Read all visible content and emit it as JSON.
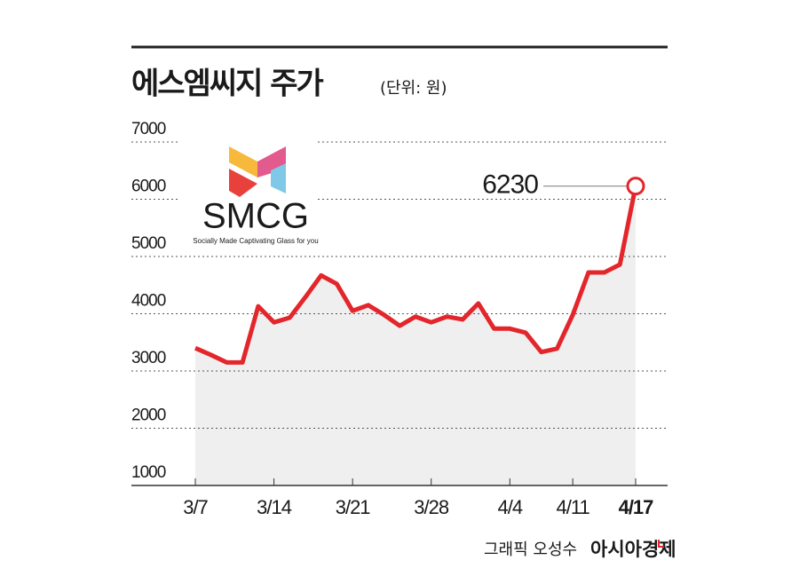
{
  "chart_data": {
    "type": "line",
    "title": "에스엠씨지 주가",
    "subtitle": "(단위: 원)",
    "categories": [
      "3/7",
      null,
      null,
      null,
      null,
      "3/14",
      null,
      null,
      null,
      null,
      "3/21",
      null,
      null,
      null,
      null,
      "3/28",
      null,
      null,
      null,
      null,
      "4/4",
      null,
      null,
      null,
      "4/11",
      null,
      null,
      null,
      "4/17"
    ],
    "series": [
      {
        "color": "#e3262b",
        "values": [
          3400,
          3280,
          3150,
          3150,
          4130,
          3850,
          3930,
          4290,
          4670,
          4520,
          4050,
          4150,
          3980,
          3790,
          3950,
          3850,
          3950,
          3900,
          4180,
          3740,
          3740,
          3670,
          3330,
          3390,
          3980,
          4720,
          4720,
          4860,
          6230
        ]
      }
    ],
    "ylim": [
      1000,
      7000
    ],
    "yticks": [
      1000,
      2000,
      3000,
      4000,
      5000,
      6000,
      7000
    ],
    "grid": true,
    "area_color": "#efefef"
  },
  "logo": {
    "name": "SMCG",
    "tagline": "Socially Made Captivating Glass for you"
  },
  "credit": "그래픽 오성수",
  "source": "아시아경제"
}
